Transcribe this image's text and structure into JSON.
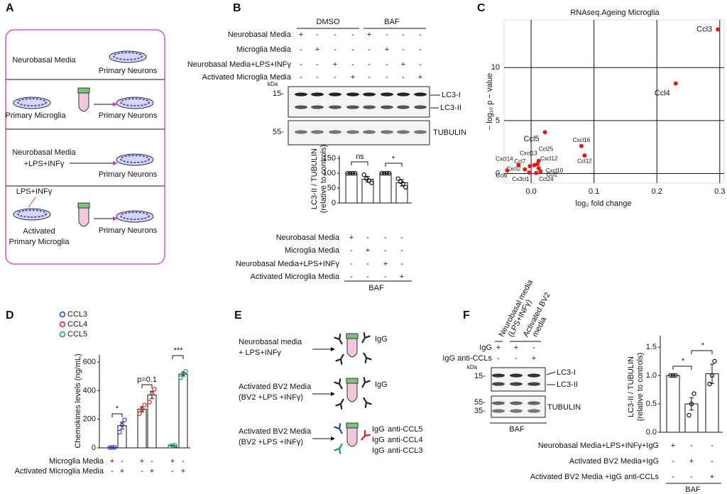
{
  "panels": {
    "A": {
      "label": "A",
      "rows": [
        {
          "source": [
            "Neurobasal Media"
          ],
          "target": "Primary Neurons"
        },
        {
          "source": [
            "Primary Microglia"
          ],
          "target": "Primary Neurons"
        },
        {
          "source": [
            "Neurobasal Media",
            "+LPS+INFγ"
          ],
          "target": "Primary Neurons"
        },
        {
          "treatment": "LPS+INFγ",
          "source": [
            "Activated",
            "Primary Microglia"
          ],
          "target": "Primary Neurons"
        }
      ]
    },
    "B": {
      "label": "B",
      "groups": [
        "DMSO",
        "BAF"
      ],
      "conditions": [
        "Neurobasal Media",
        "Microglia Media",
        "Neurobasal Media+LPS+INFγ",
        "Activated Microglia Media"
      ],
      "signs": [
        [
          "+",
          "-",
          "-",
          "-",
          "+",
          "-",
          "-",
          "-"
        ],
        [
          "-",
          "+",
          "-",
          "-",
          "-",
          "+",
          "-",
          "-"
        ],
        [
          "-",
          "-",
          "+",
          "-",
          "-",
          "-",
          "+",
          "-"
        ],
        [
          "-",
          "-",
          "-",
          "+",
          "-",
          "-",
          "-",
          "+"
        ]
      ],
      "kda": "kDa",
      "markers": [
        "15-",
        "55-"
      ],
      "bands": [
        "LC3-I",
        "LC3-II"
      ],
      "loading": "TUBULIN",
      "chart": {
        "type": "bar",
        "ylabel": [
          "LC3-II / TUBULIN",
          "(relative to controls)"
        ],
        "ylim": [
          0,
          160
        ],
        "yticks": [
          0,
          50,
          100,
          150
        ],
        "values": [
          100,
          80,
          100,
          68
        ],
        "errors": [
          0,
          10,
          0,
          11
        ],
        "points": [
          [
            100,
            100,
            100,
            100
          ],
          [
            95,
            82,
            75,
            68
          ],
          [
            100,
            100,
            100,
            100
          ],
          [
            82,
            72,
            65,
            53
          ]
        ],
        "annotations": [
          "ns",
          "*"
        ],
        "conditions": [
          "Neurobasal Media",
          "Microglia Media",
          "Neurobasal Media+LPS+INFγ",
          "Activated Microglia Media"
        ],
        "signs": [
          [
            "+",
            "-",
            "-",
            "-"
          ],
          [
            "-",
            "+",
            "-",
            "-"
          ],
          [
            "-",
            "-",
            "+",
            "-"
          ],
          [
            "-",
            "-",
            "-",
            "+"
          ]
        ],
        "group": "BAF"
      }
    },
    "C": {
      "label": "C",
      "chart": {
        "type": "scatter",
        "title": "RNAseq.Ageing Microglia",
        "xlabel": "log₂ fold change",
        "ylabel": "− log₁₀ p − value",
        "xlim": [
          -0.043,
          0.307
        ],
        "ylim": [
          -0.9,
          14.5
        ],
        "xticks": [
          {
            "value": 0,
            "label": "0.0"
          },
          0.1,
          0.2,
          0.3
        ],
        "yticks": [
          0,
          5,
          10
        ],
        "grid": true,
        "color": "#e31a1c",
        "labels": [
          "Ccl3",
          "Ccl4",
          "Ccl5",
          "Cxcl16",
          "Ccl12",
          "Ccl25",
          "Cxcl12",
          "Cxcl13",
          "Cxcl14",
          "Ccl7",
          "Cxcl2",
          "Cxcl10",
          "Ccl6",
          "Cx3cl1",
          "Ccl24",
          "Ccl2"
        ],
        "x": [
          0.297,
          0.23,
          0.022,
          0.08,
          0.085,
          0.012,
          0.01,
          0.005,
          -0.02,
          -0.002,
          -0.01,
          0.012,
          -0.038,
          -0.003,
          0.008,
          0.015
        ],
        "y": [
          13.6,
          8.5,
          3.9,
          2.6,
          1.7,
          1.2,
          0.9,
          0.8,
          0.8,
          0.7,
          0.4,
          0.5,
          0.3,
          0.1,
          0.05,
          0.2
        ]
      }
    },
    "D": {
      "label": "D",
      "chart": {
        "type": "bar",
        "ylabel": "Chemokines levels (ng/mL)",
        "ylim": [
          0,
          650
        ],
        "yticks": [
          0,
          200,
          400,
          600
        ],
        "series": [
          {
            "name": "CCL3",
            "color": "#1f3fcc",
            "values": [
              3,
              155
            ],
            "errors": [
              1,
              25
            ],
            "points": [
              [
                2,
                3,
                4
              ],
              [
                110,
                160,
                195
              ]
            ]
          },
          {
            "name": "CCL4",
            "color": "#e02020",
            "values": [
              270,
              370
            ],
            "errors": [
              18,
              26
            ],
            "points": [
              [
                240,
                270,
                300
              ],
              [
                320,
                380,
                410
              ]
            ]
          },
          {
            "name": "CCL5",
            "color": "#1a9a5a",
            "values": [
              15,
              515
            ],
            "errors": [
              2,
              13
            ],
            "points": [
              [
                12,
                15,
                18
              ],
              [
                490,
                520,
                535
              ]
            ]
          }
        ],
        "annotations": [
          "*",
          "p=0.1",
          "***"
        ],
        "conditions": [
          "Microglia Media",
          "Activated Microglia Media"
        ],
        "signs": [
          [
            "+",
            "-",
            "+",
            "-",
            "+",
            "-"
          ],
          [
            "-",
            "+",
            "-",
            "+",
            "-",
            "+"
          ]
        ]
      }
    },
    "E": {
      "label": "E",
      "media": [
        [
          "Neurobasal media",
          "+ LPS+INFγ"
        ],
        [
          "Activated BV2 Media",
          "(BV2 +LPS +INFγ)"
        ],
        [
          "Activated BV2 Media",
          "(BV2 +LPS +INFγ)"
        ]
      ],
      "antibody": "IgG",
      "antibodies": [
        {
          "prefix": "IgG",
          "name": "anti-CCL5",
          "color": "#1a9a5a"
        },
        {
          "prefix": "IgG",
          "name": "anti-CCL4",
          "color": "#e02020"
        },
        {
          "prefix": "IgG",
          "name": "anti-CCL3",
          "color": "#1f3fcc"
        }
      ]
    },
    "F": {
      "label": "F",
      "columns": [
        [
          "Neurobasal media",
          "(LPS+INFγ)"
        ],
        [
          "Activated BV2",
          "media"
        ]
      ],
      "rows": [
        "IgG",
        "IgG anti-CCLs"
      ],
      "signs": [
        [
          "+",
          "+",
          "-"
        ],
        [
          "-",
          "-",
          "+"
        ]
      ],
      "kda": "kDa",
      "markers": [
        "15-",
        "55-",
        "35-"
      ],
      "bands": [
        "LC3-I",
        "LC3-II"
      ],
      "loading": "TUBULIN",
      "group": "BAF",
      "chart": {
        "type": "bar",
        "ylabel": [
          "LC3-II / TUBULIN",
          "(relative to controls)"
        ],
        "ylim": [
          0,
          1.7
        ],
        "yticks": [
          {
            "value": 0,
            "label": "0.0"
          },
          0.5,
          {
            "value": 1,
            "label": "1.0"
          },
          1.5
        ],
        "values": [
          1,
          0.5,
          1.03
        ],
        "errors": [
          0,
          0.11,
          0.17
        ],
        "points": [
          [
            1,
            1,
            1
          ],
          [
            0.3,
            0.5,
            0.68
          ],
          [
            0.85,
            1.0,
            1.25
          ]
        ],
        "annotations": [
          "*",
          "*"
        ],
        "conditions": [
          "Neurobasal Media+LPS+INFγ+IgG",
          "Activated BV2 Media+IgG",
          "Activated BV2 Media +IgG anti-CCLs"
        ],
        "signs": [
          [
            "+",
            "-",
            "-"
          ],
          [
            "-",
            "+",
            "-"
          ],
          [
            "-",
            "-",
            "+"
          ]
        ],
        "group": "BAF"
      }
    }
  }
}
